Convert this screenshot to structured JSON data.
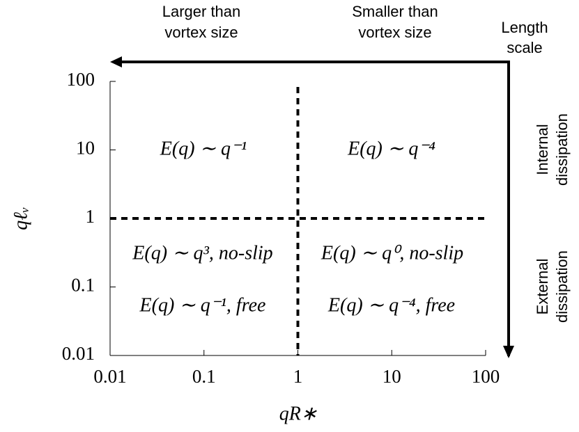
{
  "chart_data": {
    "type": "regime",
    "xlabel": "qR∗",
    "ylabel": "qℓᵥ",
    "xlim": [
      0.01,
      100
    ],
    "ylim": [
      0.01,
      100
    ],
    "xlog": true,
    "ylog": true,
    "xticks": [
      0.01,
      0.1,
      1,
      10,
      100
    ],
    "yticks": [
      0.01,
      0.1,
      1,
      10,
      100
    ],
    "dividers": {
      "x": 1,
      "y": 1
    },
    "regions": [
      "E(q) ∼ q⁻¹",
      "E(q) ∼ q⁻⁴",
      "E(q) ∼ q³, no-slip",
      "E(q) ∼ q⁰, no-slip",
      "E(q) ∼ q⁻¹, free",
      "E(q) ∼ q⁻⁴, free"
    ],
    "annotations": {
      "left": [
        "Larger than",
        "vortex size"
      ],
      "right": [
        "Smaller than",
        "vortex size"
      ],
      "arrow": [
        "Length",
        "scale"
      ],
      "internal": [
        "Internal",
        "dissipation"
      ],
      "external": [
        "External",
        "dissipation"
      ]
    }
  }
}
